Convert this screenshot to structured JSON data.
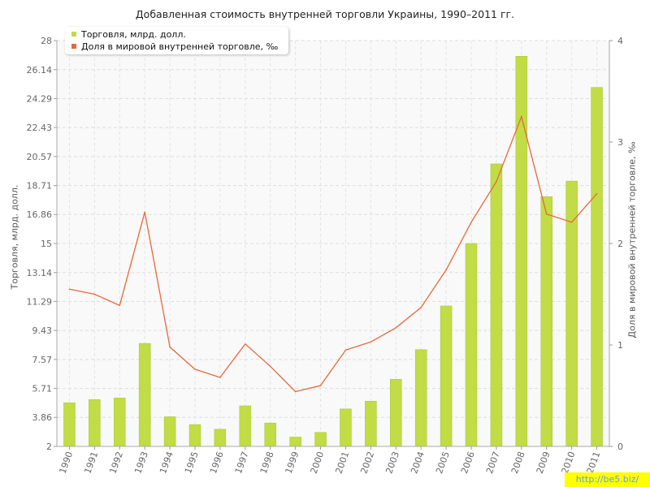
{
  "title": "Добавленная стоимость внутренней торговли Украины, 1990–2011 гг.",
  "watermark": "http://be5.biz/",
  "legend": {
    "trade_label": "Торговля, млрд. долл.",
    "share_label": "Доля в мировой внутренней торговле, ‰"
  },
  "colors": {
    "bar": "#c1dc45",
    "bar_edge": "#a8c436",
    "line": "#e8683a",
    "grid": "#dddddd",
    "axis_text": "#666666"
  },
  "chart_data": {
    "type": "bar+line",
    "title": "Добавленная стоимость внутренней торговли Украины, 1990–2011 гг.",
    "categories": [
      "1990",
      "1991",
      "1992",
      "1993",
      "1994",
      "1995",
      "1996",
      "1997",
      "1998",
      "1999",
      "2000",
      "2001",
      "2002",
      "2003",
      "2004",
      "2005",
      "2006",
      "2007",
      "2008",
      "2009",
      "2010",
      "2011"
    ],
    "series": [
      {
        "name": "Торговля, млрд. долл.",
        "type": "bar",
        "axis": "left",
        "values": [
          4.8,
          5.0,
          5.1,
          8.6,
          3.9,
          3.4,
          3.1,
          4.6,
          3.5,
          2.6,
          2.9,
          4.4,
          4.9,
          6.3,
          8.2,
          11.0,
          15.0,
          20.1,
          27.0,
          18.0,
          19.0,
          25.0
        ]
      },
      {
        "name": "Доля в мировой внутренней торговле, ‰",
        "type": "line",
        "axis": "right",
        "values": [
          1.55,
          1.5,
          1.39,
          2.31,
          0.98,
          0.76,
          0.68,
          1.01,
          0.79,
          0.54,
          0.6,
          0.95,
          1.03,
          1.17,
          1.37,
          1.74,
          2.21,
          2.61,
          3.25,
          2.29,
          2.21,
          2.49
        ]
      }
    ],
    "ylabel": "Торговля, млрд. долл.",
    "ylabel_right": "Доля в мировой внутренней торговле, ‰",
    "ylim": [
      2,
      28
    ],
    "ylim_right": [
      0,
      4
    ],
    "yticks": [
      "2",
      "3.86",
      "5.71",
      "7.57",
      "9.43",
      "11.29",
      "13.14",
      "15",
      "16.86",
      "18.71",
      "20.57",
      "22.43",
      "24.29",
      "26.14",
      "28"
    ],
    "yticks_right": [
      "0",
      "1",
      "2",
      "3",
      "4"
    ],
    "grid": true,
    "legend_position": "top-left"
  }
}
